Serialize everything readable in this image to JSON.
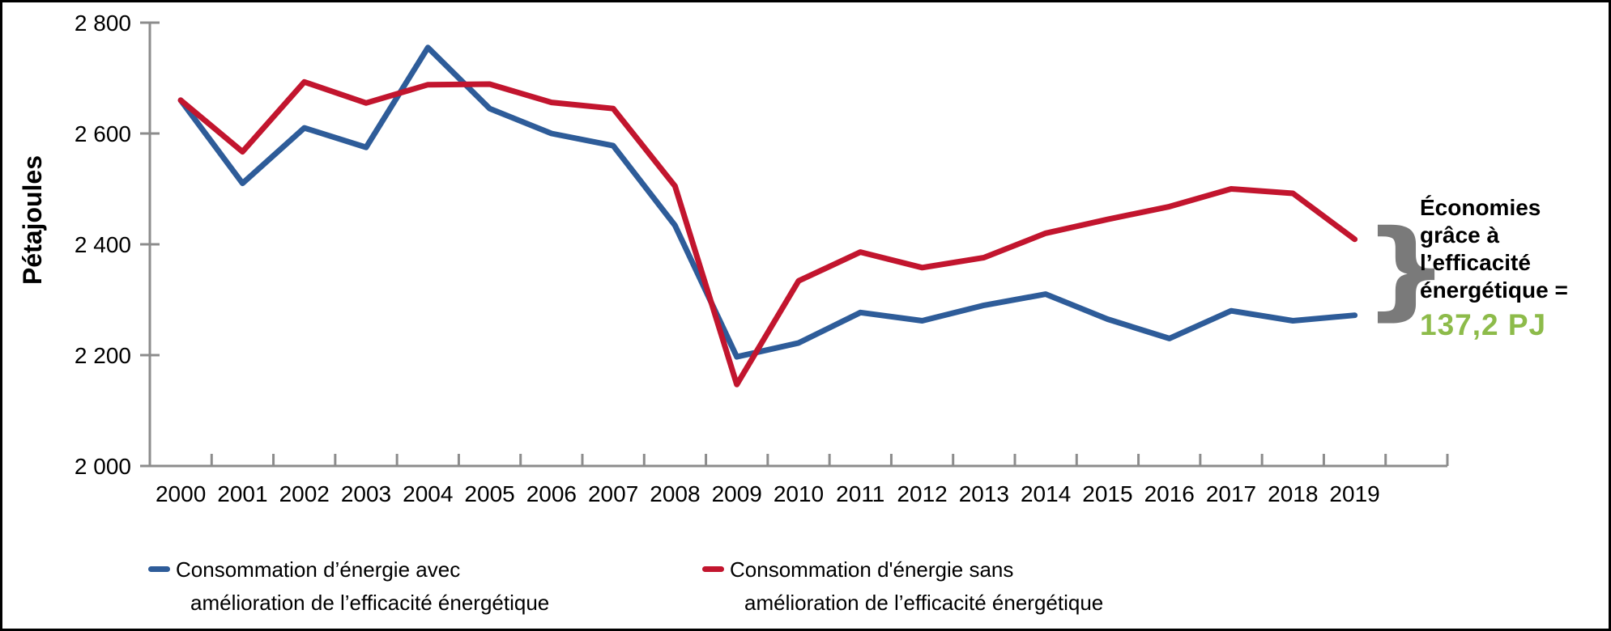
{
  "chart_data": {
    "type": "line",
    "title": "",
    "ylabel": "Pétajoules",
    "xlabel": "",
    "x": [
      2000,
      2001,
      2002,
      2003,
      2004,
      2005,
      2006,
      2007,
      2008,
      2009,
      2010,
      2011,
      2012,
      2013,
      2014,
      2015,
      2016,
      2017,
      2018,
      2019
    ],
    "xtick_labels": [
      "2000",
      "2001",
      "2002",
      "2003",
      "2004",
      "2005",
      "2006",
      "2007",
      "2008",
      "2009",
      "2010",
      "2011",
      "2012",
      "2013",
      "2014",
      "2015",
      "2016",
      "2017",
      "2018",
      "2019"
    ],
    "series": [
      {
        "name": "Consommation d’énergie avec amélioration de l’efficacité énergétique",
        "color": "#2E5C99",
        "values": [
          2660,
          2510,
          2610,
          2575,
          2755,
          2645,
          2600,
          2578,
          2434,
          2197,
          2222,
          2277,
          2262,
          2290,
          2310,
          2265,
          2230,
          2280,
          2262,
          2272
        ]
      },
      {
        "name": "Consommation d'énergie sans amélioration de l’efficacité énergétique",
        "color": "#C2152E",
        "values": [
          2660,
          2567,
          2693,
          2655,
          2688,
          2689,
          2656,
          2645,
          2505,
          2147,
          2334,
          2386,
          2358,
          2376,
          2420,
          2445,
          2468,
          2500,
          2492,
          2409
        ]
      }
    ],
    "ylim": [
      2000,
      2800
    ],
    "yticks": [
      2000,
      2200,
      2400,
      2600,
      2800
    ],
    "ytick_labels": [
      "2 000",
      "2 200",
      "2 400",
      "2 600",
      "2 800"
    ],
    "grid": false,
    "legend_position": "bottom",
    "axis_color": "#8C8C8C",
    "tick_label_color": "#000000"
  },
  "legend": {
    "items": [
      {
        "line1": "Consommation d’énergie avec",
        "line2": "amélioration de l’efficacité énergétique"
      },
      {
        "line1": "Consommation d'énergie sans",
        "line2": "amélioration de l’efficacité énergétique"
      }
    ]
  },
  "annotation": {
    "lines": [
      "Économies",
      "grâce à",
      "l’efficacité",
      "énergétique ="
    ],
    "value": "137,2 PJ",
    "value_color": "#8DBB4A",
    "brace": "}",
    "brace_color": "#7A7A7A"
  }
}
